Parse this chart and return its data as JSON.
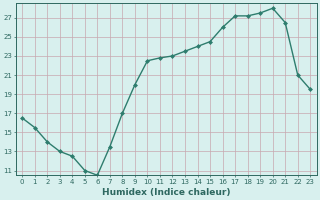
{
  "x": [
    0,
    1,
    2,
    3,
    4,
    5,
    6,
    7,
    8,
    9,
    10,
    11,
    12,
    13,
    14,
    15,
    16,
    17,
    18,
    19,
    20,
    21,
    22,
    23
  ],
  "y": [
    16.5,
    15.5,
    14.0,
    13.0,
    12.5,
    11.0,
    10.5,
    13.5,
    17.0,
    20.0,
    22.5,
    22.8,
    23.0,
    23.5,
    24.0,
    24.5,
    26.0,
    27.2,
    27.2,
    27.5,
    28.0,
    26.5,
    21.0,
    19.5
  ],
  "xlabel": "Humidex (Indice chaleur)",
  "line_color": "#2e7d6e",
  "marker": "D",
  "marker_size": 2.0,
  "linewidth": 1.0,
  "bg_color": "#d8f0ee",
  "grid_color": "#c8a8b0",
  "axis_color": "#2e6860",
  "tick_color": "#2e6860",
  "ylim": [
    10.5,
    28.5
  ],
  "xlim": [
    -0.5,
    23.5
  ],
  "yticks": [
    11,
    13,
    15,
    17,
    19,
    21,
    23,
    25,
    27
  ],
  "xticks": [
    0,
    1,
    2,
    3,
    4,
    5,
    6,
    7,
    8,
    9,
    10,
    11,
    12,
    13,
    14,
    15,
    16,
    17,
    18,
    19,
    20,
    21,
    22,
    23
  ],
  "tick_fontsize": 5.0,
  "xlabel_fontsize": 6.5
}
